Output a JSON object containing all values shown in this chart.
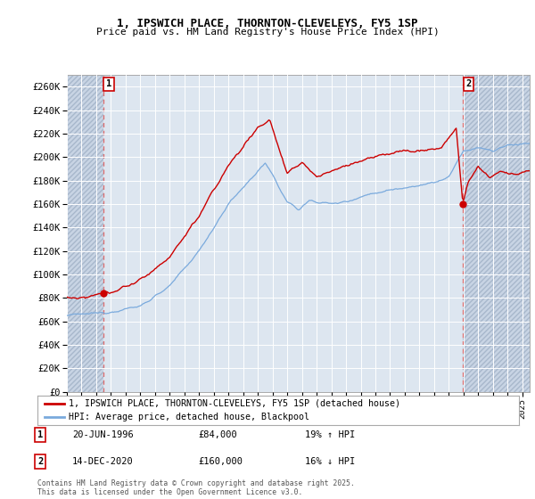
{
  "title1": "1, IPSWICH PLACE, THORNTON-CLEVELEYS, FY5 1SP",
  "title2": "Price paid vs. HM Land Registry's House Price Index (HPI)",
  "ylabel_ticks": [
    "£0",
    "£20K",
    "£40K",
    "£60K",
    "£80K",
    "£100K",
    "£120K",
    "£140K",
    "£160K",
    "£180K",
    "£200K",
    "£220K",
    "£240K",
    "£260K"
  ],
  "ytick_values": [
    0,
    20000,
    40000,
    60000,
    80000,
    100000,
    120000,
    140000,
    160000,
    180000,
    200000,
    220000,
    240000,
    260000
  ],
  "ylim": [
    0,
    270000
  ],
  "xlim_start": 1994.0,
  "xlim_end": 2025.5,
  "legend1": "1, IPSWICH PLACE, THORNTON-CLEVELEYS, FY5 1SP (detached house)",
  "legend2": "HPI: Average price, detached house, Blackpool",
  "sale1_date": "20-JUN-1996",
  "sale1_price": "£84,000",
  "sale1_pct": "19% ↑ HPI",
  "sale2_date": "14-DEC-2020",
  "sale2_price": "£160,000",
  "sale2_pct": "16% ↓ HPI",
  "footer": "Contains HM Land Registry data © Crown copyright and database right 2025.\nThis data is licensed under the Open Government Licence v3.0.",
  "line_color_red": "#cc0000",
  "line_color_blue": "#7aaadd",
  "marker_color_red": "#cc0000",
  "bg_plot": "#dde6f0",
  "bg_hatch": "#c8d4e4",
  "grid_color": "#ffffff",
  "sale1_x": 1996.46,
  "sale1_y": 84000,
  "sale2_x": 2020.95,
  "sale2_y": 160000
}
